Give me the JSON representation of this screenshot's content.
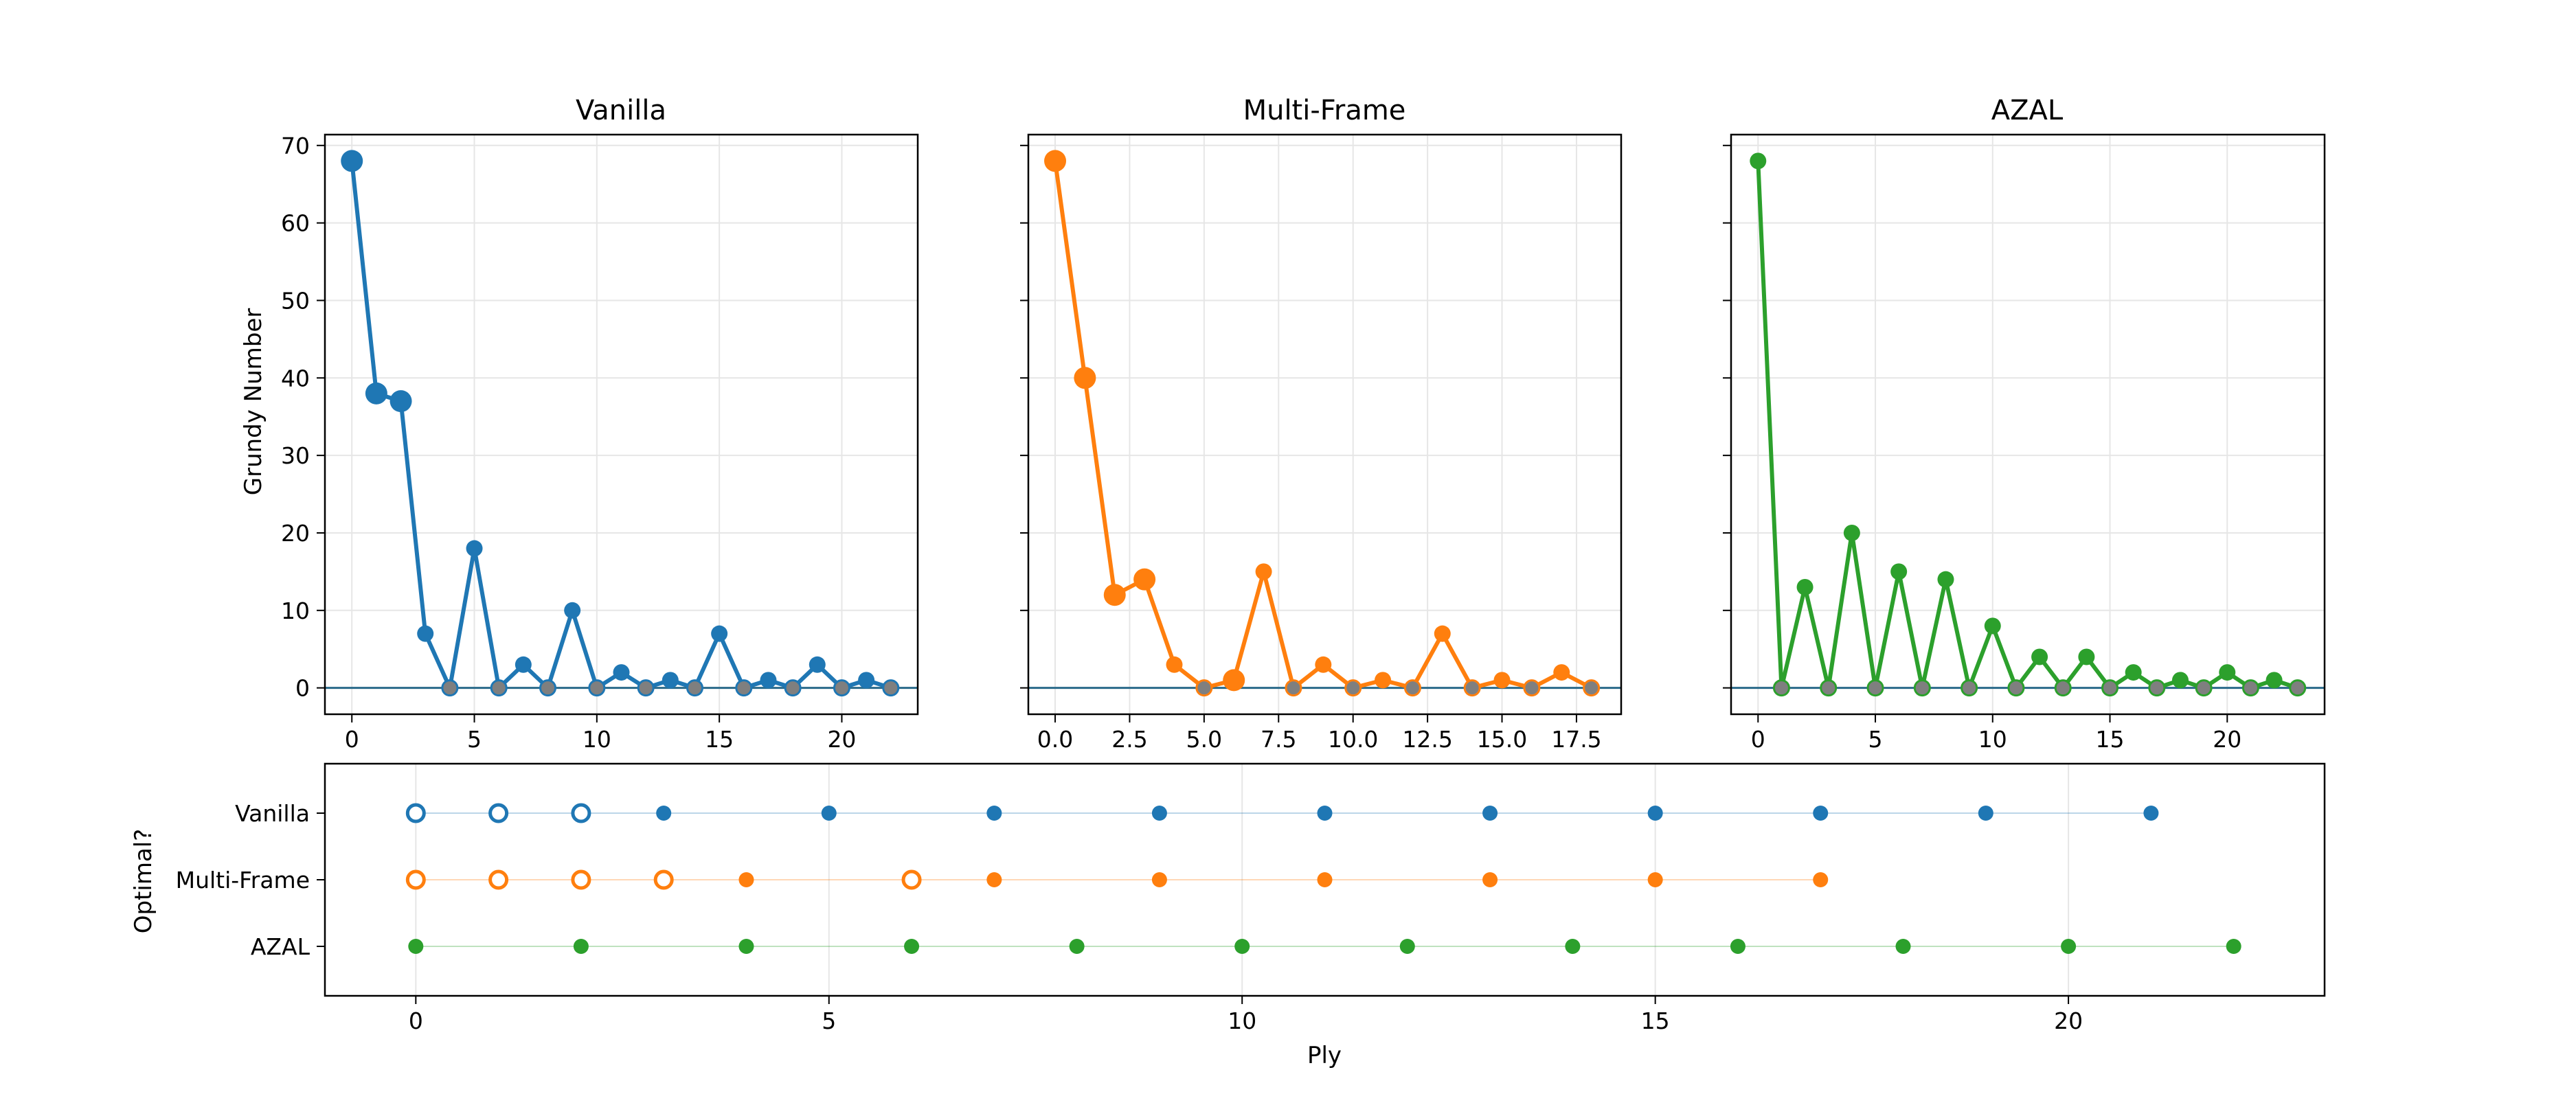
{
  "colors": {
    "vanilla": "#1f77b4",
    "multiframe": "#ff7f0e",
    "azal": "#2ca02c",
    "zero_marker": "#7f7f7f",
    "grid": "#e6e6e6",
    "axis": "#000000"
  },
  "chart_data": [
    {
      "type": "line",
      "title": "Vanilla",
      "xlabel": "",
      "ylabel": "Grundy Number",
      "xlim": [
        -1.1,
        23.1
      ],
      "ylim": [
        -3.4,
        71.4
      ],
      "xticks": [
        0,
        5,
        10,
        15,
        20
      ],
      "xtick_labels": [
        "0",
        "5",
        "10",
        "15",
        "20"
      ],
      "yticks": [
        0,
        10,
        20,
        30,
        40,
        50,
        60,
        70
      ],
      "ytick_labels": [
        "0",
        "10",
        "20",
        "30",
        "40",
        "50",
        "60",
        "70"
      ],
      "grid": true,
      "reference_line_y": 0,
      "series": [
        {
          "color": "#1f77b4",
          "x": [
            0,
            1,
            2,
            3,
            4,
            5,
            6,
            7,
            8,
            9,
            10,
            11,
            12,
            13,
            14,
            15,
            16,
            17,
            18,
            19,
            20,
            21,
            22
          ],
          "y": [
            68,
            38,
            37,
            7,
            0,
            18,
            0,
            3,
            0,
            10,
            0,
            2,
            0,
            1,
            0,
            7,
            0,
            1,
            0,
            3,
            0,
            1,
            0
          ],
          "large_marker_x": [
            0,
            1,
            2
          ]
        }
      ]
    },
    {
      "type": "line",
      "title": "Multi-Frame",
      "xlabel": "",
      "ylabel": "",
      "xlim": [
        -0.9,
        19.0
      ],
      "ylim": [
        -3.4,
        71.4
      ],
      "xticks": [
        0,
        2.5,
        5,
        7.5,
        10,
        12.5,
        15,
        17.5
      ],
      "xtick_labels": [
        "0.0",
        "2.5",
        "5.0",
        "7.5",
        "10.0",
        "12.5",
        "15.0",
        "17.5"
      ],
      "yticks": [
        0,
        10,
        20,
        30,
        40,
        50,
        60,
        70
      ],
      "grid": true,
      "reference_line_y": 0,
      "series": [
        {
          "color": "#ff7f0e",
          "x": [
            0,
            1,
            2,
            3,
            4,
            5,
            6,
            7,
            8,
            9,
            10,
            11,
            12,
            13,
            14,
            15,
            16,
            17,
            18
          ],
          "y": [
            68,
            40,
            12,
            14,
            3,
            0,
            1,
            15,
            0,
            3,
            0,
            1,
            0,
            7,
            0,
            1,
            0,
            2,
            0
          ],
          "large_marker_x": [
            0,
            1,
            2,
            3,
            6
          ]
        }
      ]
    },
    {
      "type": "line",
      "title": "AZAL",
      "xlabel": "",
      "ylabel": "",
      "xlim": [
        -1.15,
        24.15
      ],
      "ylim": [
        -3.4,
        71.4
      ],
      "xticks": [
        0,
        5,
        10,
        15,
        20
      ],
      "xtick_labels": [
        "0",
        "5",
        "10",
        "15",
        "20"
      ],
      "yticks": [
        0,
        10,
        20,
        30,
        40,
        50,
        60,
        70
      ],
      "grid": true,
      "reference_line_y": 0,
      "series": [
        {
          "color": "#2ca02c",
          "x": [
            0,
            1,
            2,
            3,
            4,
            5,
            6,
            7,
            8,
            9,
            10,
            11,
            12,
            13,
            14,
            15,
            16,
            17,
            18,
            19,
            20,
            21,
            22,
            23
          ],
          "y": [
            68,
            0,
            13,
            0,
            20,
            0,
            15,
            0,
            14,
            0,
            8,
            0,
            4,
            0,
            4,
            0,
            2,
            0,
            1,
            0,
            2,
            0,
            1,
            0
          ],
          "large_marker_x": []
        }
      ]
    },
    {
      "type": "scatter",
      "title": "",
      "xlabel": "Ply",
      "ylabel": "Optimal?",
      "xlim": [
        -1.1,
        23.1
      ],
      "xticks": [
        0,
        5,
        10,
        15,
        20
      ],
      "xtick_labels": [
        "0",
        "5",
        "10",
        "15",
        "20"
      ],
      "grid": true,
      "categories": [
        "Vanilla",
        "Multi-Frame",
        "AZAL"
      ],
      "series": [
        {
          "category": "Vanilla",
          "color": "#1f77b4",
          "plies": [
            0,
            1,
            2,
            3,
            5,
            7,
            9,
            11,
            13,
            15,
            17,
            19,
            21
          ],
          "optimal": [
            false,
            false,
            false,
            true,
            true,
            true,
            true,
            true,
            true,
            true,
            true,
            true,
            true
          ]
        },
        {
          "category": "Multi-Frame",
          "color": "#ff7f0e",
          "plies": [
            0,
            1,
            2,
            3,
            4,
            6,
            7,
            9,
            11,
            13,
            15,
            17
          ],
          "optimal": [
            false,
            false,
            false,
            false,
            true,
            false,
            true,
            true,
            true,
            true,
            true,
            true
          ]
        },
        {
          "category": "AZAL",
          "color": "#2ca02c",
          "plies": [
            0,
            2,
            4,
            6,
            8,
            10,
            12,
            14,
            16,
            18,
            20,
            22
          ],
          "optimal": [
            true,
            true,
            true,
            true,
            true,
            true,
            true,
            true,
            true,
            true,
            true,
            true
          ]
        }
      ]
    }
  ]
}
